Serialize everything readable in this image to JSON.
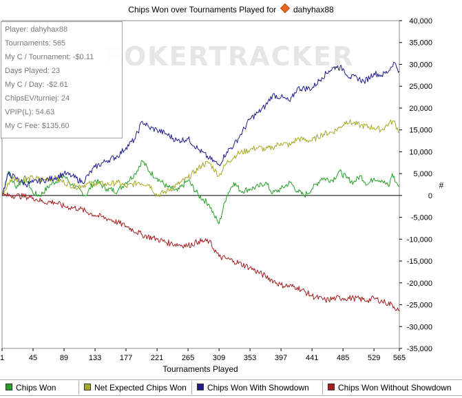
{
  "colors": {
    "chips_won": "#24a024",
    "net_expected": "#a8a822",
    "with_showdown": "#1c1c8c",
    "without_showdown": "#a41c1c",
    "accent_logo": "#e8661c"
  },
  "header": {
    "title_prefix": "Chips Won over Tournaments Played for",
    "player_icon": "pokerstars-diamond-icon",
    "player_name": "dahyhax88"
  },
  "watermark": "POKERTRACKER",
  "stats_box": {
    "player": "Player: dahyhax88",
    "tournaments": "Tournaments: 565",
    "my_c_tournament": "My C / Tournament: -$0.11",
    "days_played": "Days Played: 23",
    "my_c_day": "My C / Day: -$2.61",
    "chips_ev": "ChipsEV/turniej: 24",
    "vpip": "VPIP(L): 54.63",
    "my_c_fee": "My C Fee: $135.60"
  },
  "chart_data": {
    "type": "line",
    "title": "Chips Won over Tournaments Played for dahyhax88",
    "xlabel": "Tournaments Played",
    "ylabel": "#",
    "xlim": [
      1,
      565
    ],
    "ylim": [
      -35000,
      40000
    ],
    "x_ticks": [
      1,
      45,
      89,
      133,
      177,
      221,
      265,
      309,
      353,
      397,
      441,
      485,
      529,
      565
    ],
    "y_ticks": [
      40000,
      35000,
      30000,
      25000,
      20000,
      15000,
      10000,
      5000,
      0,
      -5000,
      -10000,
      -15000,
      -20000,
      -25000,
      -30000,
      -35000
    ],
    "y_tick_labels": [
      "40,000",
      "35,000",
      "30,000",
      "25,000",
      "20,000",
      "15,000",
      "10,000",
      "5,000",
      "0",
      "-5,000",
      "-10,000",
      "-15,000",
      "-20,000",
      "-25,000",
      "-30,000",
      "-35,000"
    ],
    "grid": false,
    "legend_position": "bottom",
    "series": [
      {
        "name": "Chips Won",
        "color": "#24a024",
        "points": [
          [
            1,
            0
          ],
          [
            10,
            5500
          ],
          [
            20,
            2000
          ],
          [
            35,
            4000
          ],
          [
            45,
            500
          ],
          [
            55,
            0
          ],
          [
            70,
            2500
          ],
          [
            89,
            4500
          ],
          [
            100,
            2500
          ],
          [
            120,
            0
          ],
          [
            133,
            3500
          ],
          [
            150,
            1500
          ],
          [
            165,
            1000
          ],
          [
            177,
            3000
          ],
          [
            190,
            5000
          ],
          [
            200,
            8000
          ],
          [
            210,
            5500
          ],
          [
            221,
            4000
          ],
          [
            235,
            2000
          ],
          [
            250,
            1000
          ],
          [
            265,
            3500
          ],
          [
            280,
            0
          ],
          [
            295,
            -2000
          ],
          [
            302,
            -4500
          ],
          [
            309,
            -6500
          ],
          [
            320,
            0
          ],
          [
            330,
            3000
          ],
          [
            340,
            1000
          ],
          [
            353,
            1500
          ],
          [
            365,
            2000
          ],
          [
            375,
            3000
          ],
          [
            385,
            500
          ],
          [
            397,
            1500
          ],
          [
            410,
            3000
          ],
          [
            420,
            1000
          ],
          [
            430,
            0
          ],
          [
            441,
            1500
          ],
          [
            455,
            4000
          ],
          [
            470,
            3500
          ],
          [
            480,
            5500
          ],
          [
            490,
            4000
          ],
          [
            500,
            3000
          ],
          [
            510,
            4500
          ],
          [
            520,
            2500
          ],
          [
            529,
            4000
          ],
          [
            540,
            3500
          ],
          [
            550,
            2000
          ],
          [
            555,
            5000
          ],
          [
            560,
            3000
          ],
          [
            565,
            2000
          ]
        ]
      },
      {
        "name": "Net Expected Chips Won",
        "color": "#a8a822",
        "points": [
          [
            1,
            0
          ],
          [
            15,
            4000
          ],
          [
            30,
            3500
          ],
          [
            45,
            4000
          ],
          [
            60,
            3500
          ],
          [
            75,
            4000
          ],
          [
            89,
            3000
          ],
          [
            105,
            2000
          ],
          [
            120,
            2500
          ],
          [
            133,
            2800
          ],
          [
            150,
            2500
          ],
          [
            165,
            3000
          ],
          [
            177,
            2000
          ],
          [
            195,
            3000
          ],
          [
            210,
            2500
          ],
          [
            221,
            0
          ],
          [
            235,
            1000
          ],
          [
            250,
            2500
          ],
          [
            265,
            4000
          ],
          [
            275,
            5500
          ],
          [
            285,
            7000
          ],
          [
            295,
            7500
          ],
          [
            309,
            4500
          ],
          [
            320,
            7500
          ],
          [
            335,
            9500
          ],
          [
            353,
            10500
          ],
          [
            365,
            11000
          ],
          [
            375,
            10500
          ],
          [
            385,
            11000
          ],
          [
            397,
            12000
          ],
          [
            410,
            11500
          ],
          [
            420,
            13000
          ],
          [
            441,
            12500
          ],
          [
            455,
            14000
          ],
          [
            470,
            14500
          ],
          [
            480,
            15500
          ],
          [
            490,
            17000
          ],
          [
            500,
            16500
          ],
          [
            510,
            16000
          ],
          [
            529,
            15500
          ],
          [
            540,
            15000
          ],
          [
            550,
            16500
          ],
          [
            557,
            17000
          ],
          [
            565,
            14500
          ]
        ]
      },
      {
        "name": "Chips Won With Showdown",
        "color": "#1c1c8c",
        "points": [
          [
            1,
            0
          ],
          [
            10,
            5000
          ],
          [
            20,
            4000
          ],
          [
            35,
            2500
          ],
          [
            45,
            3000
          ],
          [
            60,
            3500
          ],
          [
            75,
            4000
          ],
          [
            89,
            5000
          ],
          [
            100,
            4500
          ],
          [
            115,
            3000
          ],
          [
            133,
            6500
          ],
          [
            150,
            8000
          ],
          [
            165,
            9000
          ],
          [
            177,
            11000
          ],
          [
            190,
            13000
          ],
          [
            200,
            17000
          ],
          [
            210,
            15500
          ],
          [
            221,
            15000
          ],
          [
            235,
            14000
          ],
          [
            250,
            12500
          ],
          [
            265,
            13000
          ],
          [
            280,
            10500
          ],
          [
            295,
            8500
          ],
          [
            309,
            7000
          ],
          [
            320,
            10000
          ],
          [
            330,
            11500
          ],
          [
            340,
            14000
          ],
          [
            353,
            17500
          ],
          [
            365,
            19000
          ],
          [
            375,
            20500
          ],
          [
            385,
            23000
          ],
          [
            397,
            22500
          ],
          [
            410,
            21500
          ],
          [
            420,
            24500
          ],
          [
            441,
            24500
          ],
          [
            455,
            27000
          ],
          [
            465,
            28500
          ],
          [
            475,
            29500
          ],
          [
            485,
            29000
          ],
          [
            495,
            27000
          ],
          [
            505,
            27000
          ],
          [
            515,
            26000
          ],
          [
            529,
            28000
          ],
          [
            540,
            27500
          ],
          [
            550,
            28500
          ],
          [
            557,
            30500
          ],
          [
            565,
            28500
          ]
        ]
      },
      {
        "name": "Chips Won Without Showdown",
        "color": "#a41c1c",
        "points": [
          [
            1,
            0
          ],
          [
            20,
            0
          ],
          [
            45,
            -500
          ],
          [
            60,
            -1500
          ],
          [
            75,
            -1500
          ],
          [
            89,
            -2500
          ],
          [
            110,
            -3000
          ],
          [
            133,
            -4500
          ],
          [
            155,
            -5500
          ],
          [
            177,
            -7000
          ],
          [
            200,
            -9000
          ],
          [
            221,
            -10000
          ],
          [
            240,
            -11000
          ],
          [
            265,
            -11500
          ],
          [
            280,
            -10500
          ],
          [
            295,
            -10500
          ],
          [
            309,
            -14000
          ],
          [
            330,
            -15000
          ],
          [
            353,
            -16500
          ],
          [
            375,
            -18500
          ],
          [
            397,
            -20500
          ],
          [
            420,
            -21000
          ],
          [
            441,
            -23000
          ],
          [
            460,
            -24000
          ],
          [
            475,
            -23500
          ],
          [
            485,
            -23500
          ],
          [
            500,
            -23500
          ],
          [
            520,
            -24000
          ],
          [
            529,
            -23500
          ],
          [
            545,
            -24500
          ],
          [
            555,
            -25000
          ],
          [
            565,
            -26500
          ]
        ]
      }
    ]
  },
  "legend": {
    "items": [
      {
        "label": "Chips Won",
        "color": "#24a024"
      },
      {
        "label": "Net Expected Chips Won",
        "color": "#a8a822"
      },
      {
        "label": "Chips Won With Showdown",
        "color": "#1c1c8c"
      },
      {
        "label": "Chips Won Without Showdown",
        "color": "#a41c1c"
      }
    ]
  }
}
